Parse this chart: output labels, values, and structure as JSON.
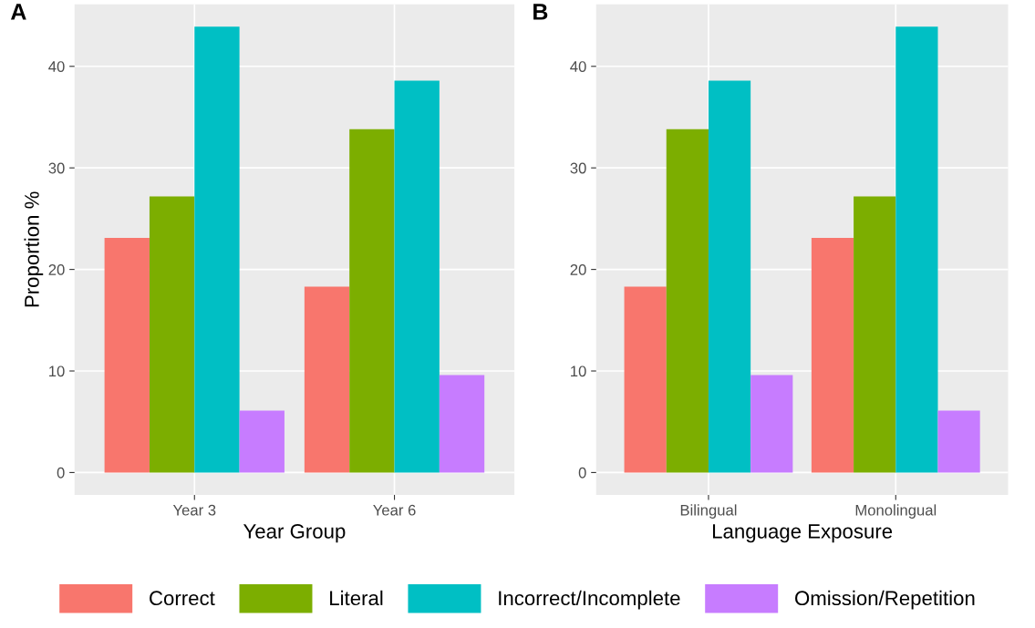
{
  "chart_data": [
    {
      "type": "bar",
      "title": "A",
      "xlabel": "Year Group",
      "ylabel": "Proportion %",
      "categories": [
        "Year 3",
        "Year 6"
      ],
      "series": [
        {
          "name": "Correct",
          "color": "#f8766d",
          "values": [
            23.1,
            18.3
          ]
        },
        {
          "name": "Literal",
          "color": "#7cae00",
          "values": [
            27.2,
            33.8
          ]
        },
        {
          "name": "Incorrect/Incomplete",
          "color": "#00bfc4",
          "values": [
            43.9,
            38.6
          ]
        },
        {
          "name": "Omission/Repetition",
          "color": "#c77cff",
          "values": [
            6.1,
            9.6
          ]
        }
      ],
      "ylim": [
        -2.2,
        46.1
      ],
      "yticks": [
        0,
        10,
        20,
        30,
        40
      ],
      "grid": true,
      "legend": "bottom"
    },
    {
      "type": "bar",
      "title": "B",
      "xlabel": "Language Exposure",
      "categories": [
        "Bilingual",
        "Monolingual"
      ],
      "series": [
        {
          "name": "Correct",
          "color": "#f8766d",
          "values": [
            18.3,
            23.1
          ]
        },
        {
          "name": "Literal",
          "color": "#7cae00",
          "values": [
            33.8,
            27.2
          ]
        },
        {
          "name": "Incorrect/Incomplete",
          "color": "#00bfc4",
          "values": [
            38.6,
            43.9
          ]
        },
        {
          "name": "Omission/Repetition",
          "color": "#c77cff",
          "values": [
            9.6,
            6.1
          ]
        }
      ],
      "ylim": [
        -2.2,
        46.1
      ],
      "yticks": [
        0,
        10,
        20,
        30,
        40
      ],
      "grid": true,
      "legend": "bottom"
    }
  ]
}
